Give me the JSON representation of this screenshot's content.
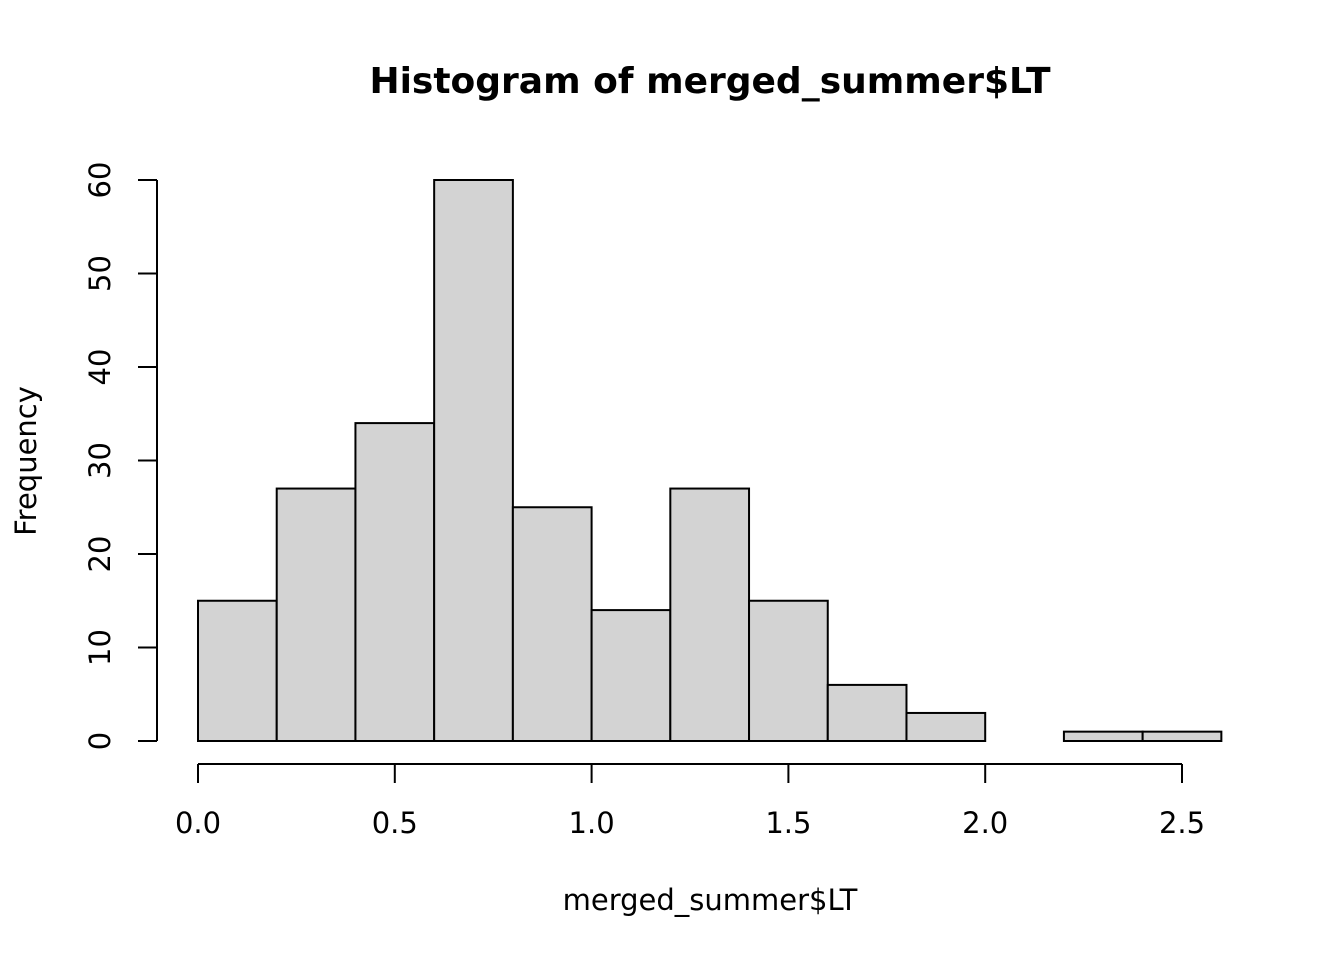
{
  "chart_data": {
    "type": "bar",
    "title": "Histogram of merged_summer$LT",
    "xlabel": "merged_summer$LT",
    "ylabel": "Frequency",
    "bin_edges": [
      0.0,
      0.2,
      0.4,
      0.6,
      0.8,
      1.0,
      1.2,
      1.4,
      1.6,
      1.8,
      2.0,
      2.2,
      2.4,
      2.6
    ],
    "values": [
      15,
      27,
      34,
      60,
      25,
      14,
      27,
      15,
      6,
      3,
      0,
      1,
      1
    ],
    "xticks": [
      0.0,
      0.5,
      1.0,
      1.5,
      2.0,
      2.5
    ],
    "xtick_labels": [
      "0.0",
      "0.5",
      "1.0",
      "1.5",
      "2.0",
      "2.5"
    ],
    "yticks": [
      0,
      10,
      20,
      30,
      40,
      50,
      60
    ],
    "ytick_labels": [
      "0",
      "10",
      "20",
      "30",
      "40",
      "50",
      "60"
    ],
    "xlim": [
      0.0,
      2.6
    ],
    "ylim": [
      0,
      60
    ],
    "grid": false,
    "bar_color": "#d3d3d3",
    "edge_color": "#000000"
  }
}
